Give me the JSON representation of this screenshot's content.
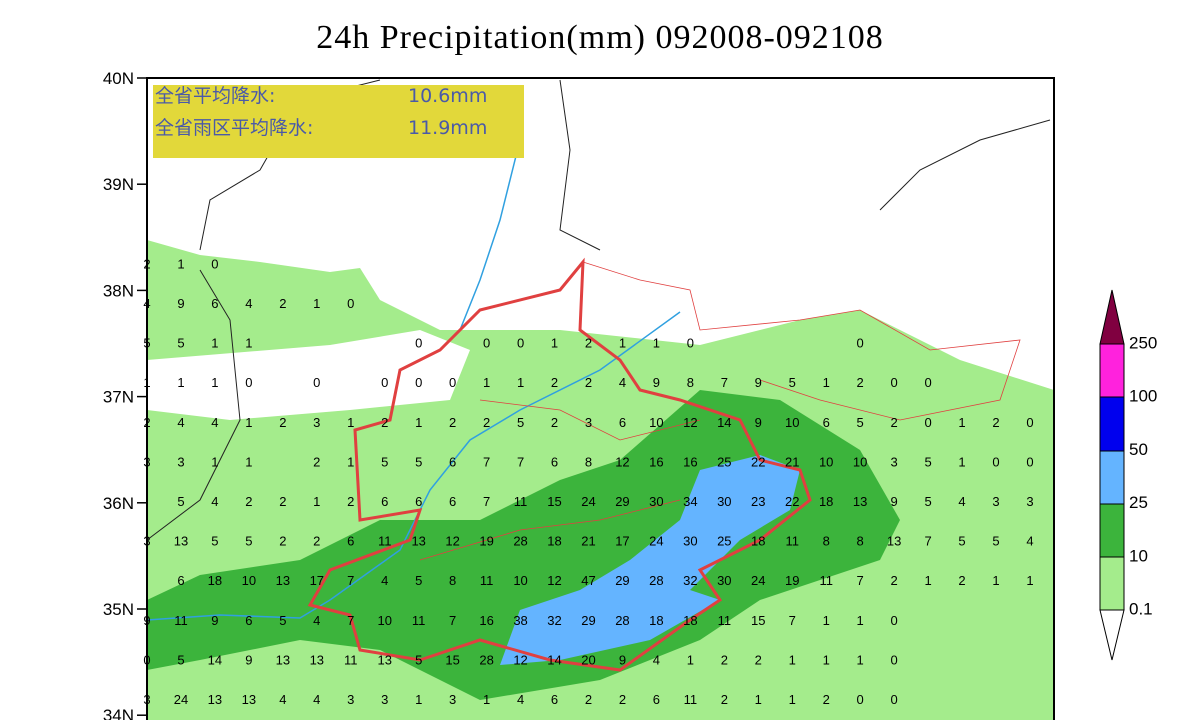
{
  "title": "24h Precipitation(mm) 092008-092108",
  "info": {
    "line1_label": "全省平均降水:",
    "line1_value": "10.6mm",
    "line2_label": "全省雨区平均降水:",
    "line2_value": "11.9mm"
  },
  "lat_labels": [
    "40N",
    "39N",
    "38N",
    "37N",
    "36N",
    "35N",
    "34N"
  ],
  "colorbar_labels": [
    "0.1",
    "10",
    "25",
    "50",
    "100",
    "250"
  ],
  "grid": {
    "rows": [
      [
        2,
        1,
        0,
        null,
        null,
        null,
        null,
        null,
        null,
        null,
        null,
        null,
        null,
        null,
        null,
        null,
        null,
        null,
        null,
        null,
        null,
        null,
        null,
        null,
        null,
        null,
        null
      ],
      [
        4,
        9,
        6,
        4,
        2,
        1,
        0,
        null,
        null,
        null,
        null,
        null,
        null,
        null,
        null,
        null,
        null,
        null,
        null,
        null,
        null,
        null,
        null,
        null,
        null,
        null,
        null
      ],
      [
        5,
        5,
        1,
        1,
        null,
        null,
        null,
        null,
        0,
        null,
        0,
        0,
        1,
        2,
        1,
        1,
        0,
        null,
        null,
        null,
        null,
        0,
        null,
        null,
        null,
        null,
        null
      ],
      [
        1,
        1,
        1,
        0,
        null,
        0,
        null,
        0,
        0,
        0,
        1,
        1,
        2,
        2,
        4,
        9,
        8,
        7,
        9,
        5,
        1,
        2,
        0,
        0,
        null,
        null,
        null
      ],
      [
        2,
        4,
        4,
        1,
        2,
        3,
        1,
        2,
        1,
        2,
        2,
        5,
        2,
        3,
        6,
        10,
        12,
        14,
        9,
        10,
        6,
        5,
        2,
        0,
        1,
        2,
        0
      ],
      [
        3,
        3,
        1,
        1,
        null,
        2,
        1,
        5,
        5,
        6,
        7,
        7,
        6,
        8,
        12,
        16,
        16,
        25,
        22,
        21,
        10,
        10,
        3,
        5,
        1,
        0,
        0
      ],
      [
        null,
        5,
        4,
        2,
        2,
        1,
        2,
        6,
        6,
        6,
        7,
        11,
        15,
        24,
        29,
        30,
        34,
        30,
        23,
        22,
        18,
        13,
        9,
        5,
        4,
        3,
        3
      ],
      [
        3,
        13,
        5,
        5,
        2,
        2,
        6,
        11,
        13,
        12,
        19,
        28,
        18,
        21,
        17,
        24,
        30,
        25,
        18,
        11,
        8,
        8,
        13,
        7,
        5,
        5,
        4
      ],
      [
        null,
        6,
        18,
        10,
        13,
        17,
        7,
        4,
        5,
        8,
        11,
        10,
        12,
        47,
        29,
        28,
        32,
        30,
        24,
        19,
        11,
        7,
        2,
        1,
        2,
        1,
        1
      ],
      [
        9,
        11,
        9,
        6,
        5,
        4,
        7,
        10,
        11,
        7,
        16,
        38,
        32,
        29,
        28,
        18,
        18,
        11,
        15,
        7,
        1,
        1,
        0,
        null,
        null,
        null,
        null
      ],
      [
        0,
        5,
        14,
        9,
        13,
        13,
        11,
        13,
        5,
        15,
        28,
        12,
        14,
        20,
        9,
        4,
        1,
        2,
        2,
        1,
        1,
        1,
        0,
        null,
        null,
        null,
        null
      ],
      [
        3,
        24,
        13,
        13,
        4,
        4,
        3,
        3,
        1,
        3,
        1,
        4,
        6,
        2,
        2,
        6,
        11,
        2,
        1,
        1,
        2,
        0,
        0,
        null,
        null,
        null,
        null
      ]
    ]
  }
}
